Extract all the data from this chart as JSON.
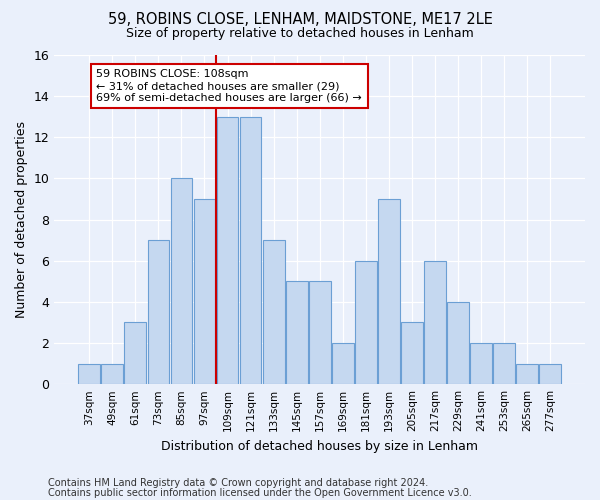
{
  "title_line1": "59, ROBINS CLOSE, LENHAM, MAIDSTONE, ME17 2LE",
  "title_line2": "Size of property relative to detached houses in Lenham",
  "xlabel": "Distribution of detached houses by size in Lenham",
  "ylabel": "Number of detached properties",
  "categories": [
    "37sqm",
    "49sqm",
    "61sqm",
    "73sqm",
    "85sqm",
    "97sqm",
    "109sqm",
    "121sqm",
    "133sqm",
    "145sqm",
    "157sqm",
    "169sqm",
    "181sqm",
    "193sqm",
    "205sqm",
    "217sqm",
    "229sqm",
    "241sqm",
    "253sqm",
    "265sqm",
    "277sqm"
  ],
  "values": [
    1,
    1,
    3,
    7,
    10,
    9,
    13,
    13,
    7,
    5,
    5,
    2,
    6,
    9,
    3,
    6,
    4,
    2,
    2,
    1,
    1
  ],
  "bar_color": "#c5d8f0",
  "bar_edge_color": "#6b9fd4",
  "vline_color": "#cc0000",
  "annotation_text": "59 ROBINS CLOSE: 108sqm\n← 31% of detached houses are smaller (29)\n69% of semi-detached houses are larger (66) →",
  "annotation_box_color": "#cc0000",
  "ylim": [
    0,
    16
  ],
  "yticks": [
    0,
    2,
    4,
    6,
    8,
    10,
    12,
    14,
    16
  ],
  "footnote1": "Contains HM Land Registry data © Crown copyright and database right 2024.",
  "footnote2": "Contains public sector information licensed under the Open Government Licence v3.0.",
  "bg_color": "#eaf0fb",
  "plot_bg_color": "#eaf0fb"
}
